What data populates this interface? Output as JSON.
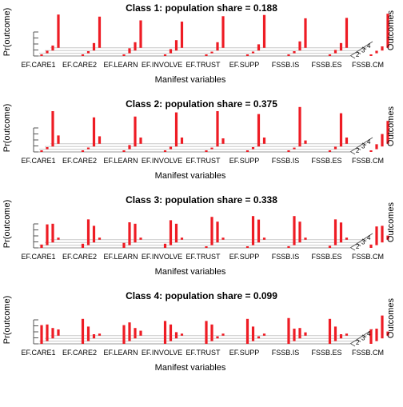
{
  "chart_data": [
    {
      "type": "bar3d",
      "title": "Class 1: population share = 0.188",
      "xlabel": "Manifest variables",
      "ylabel": "Pr(outcome)",
      "zlabel": "Outcomes",
      "categories": [
        "EF.CARE1",
        "EF.CARE2",
        "EF.LEARN",
        "EF.INVOLVE",
        "EF.TRUST",
        "EF.SUPP",
        "FSSB.IS",
        "FSSB.ES",
        "FSSB.CM"
      ],
      "outcome_ticks": [
        "2",
        "3",
        "4"
      ],
      "series": [
        {
          "values": [
            0.02,
            0.02,
            0.02,
            0.02,
            0.02,
            0.02,
            0.02,
            0.02,
            0.02
          ]
        },
        {
          "values": [
            0.06,
            0.05,
            0.12,
            0.1,
            0.02,
            0.04,
            0.05,
            0.08,
            0.06
          ]
        },
        {
          "values": [
            0.12,
            0.18,
            0.2,
            0.25,
            0.2,
            0.15,
            0.22,
            0.18,
            0.1
          ]
        },
        {
          "values": [
            0.8,
            0.75,
            0.66,
            0.63,
            0.76,
            0.79,
            0.71,
            0.72,
            0.82
          ]
        }
      ]
    },
    {
      "type": "bar3d",
      "title": "Class 2: population share = 0.375",
      "xlabel": "Manifest variables",
      "ylabel": "Pr(outcome)",
      "zlabel": "Outcomes",
      "categories": [
        "EF.CARE1",
        "EF.CARE2",
        "EF.LEARN",
        "EF.INVOLVE",
        "EF.TRUST",
        "EF.SUPP",
        "FSSB.IS",
        "FSSB.ES",
        "FSSB.CM"
      ],
      "outcome_ticks": [
        "2",
        "3",
        "4"
      ],
      "series": [
        {
          "values": [
            0.02,
            0.02,
            0.02,
            0.02,
            0.02,
            0.02,
            0.02,
            0.02,
            0.02
          ]
        },
        {
          "values": [
            0.05,
            0.04,
            0.1,
            0.06,
            0.03,
            0.05,
            0.02,
            0.06,
            0.12
          ]
        },
        {
          "values": [
            0.85,
            0.7,
            0.72,
            0.82,
            0.85,
            0.78,
            0.95,
            0.8,
            0.3
          ]
        },
        {
          "values": [
            0.2,
            0.18,
            0.15,
            0.15,
            0.13,
            0.15,
            0.08,
            0.15,
            0.55
          ]
        }
      ]
    },
    {
      "type": "bar3d",
      "title": "Class 3: population share = 0.338",
      "xlabel": "Manifest variables",
      "ylabel": "Pr(outcome)",
      "zlabel": "Outcomes",
      "categories": [
        "EF.CARE1",
        "EF.CARE2",
        "EF.LEARN",
        "EF.INVOLVE",
        "EF.TRUST",
        "EF.SUPP",
        "FSSB.IS",
        "FSSB.ES",
        "FSSB.CM"
      ],
      "outcome_ticks": [
        "2",
        "3",
        "4"
      ],
      "series": [
        {
          "values": [
            0.08,
            0.1,
            0.12,
            0.1,
            0.03,
            0.02,
            0.04,
            0.05,
            0.08
          ]
        },
        {
          "values": [
            0.5,
            0.62,
            0.55,
            0.6,
            0.68,
            0.7,
            0.7,
            0.62,
            0.45
          ]
        },
        {
          "values": [
            0.45,
            0.4,
            0.45,
            0.45,
            0.5,
            0.55,
            0.5,
            0.48,
            0.4
          ]
        },
        {
          "values": [
            0.05,
            0.05,
            0.05,
            0.05,
            0.05,
            0.05,
            0.05,
            0.05,
            0.1
          ]
        }
      ]
    },
    {
      "type": "bar3d",
      "title": "Class 4: population share = 0.099",
      "xlabel": "Manifest variables",
      "ylabel": "Pr(outcome)",
      "zlabel": "Outcomes",
      "categories": [
        "EF.CARE1",
        "EF.CARE2",
        "EF.LEARN",
        "EF.INVOLVE",
        "EF.TRUST",
        "EF.SUPP",
        "FSSB.IS",
        "FSSB.ES",
        "FSSB.CM"
      ],
      "outcome_ticks": [
        "2",
        "3",
        "4"
      ],
      "series": [
        {
          "values": [
            0.45,
            0.6,
            0.45,
            0.55,
            0.55,
            0.6,
            0.62,
            0.6,
            0.35
          ]
        },
        {
          "values": [
            0.4,
            0.35,
            0.45,
            0.4,
            0.4,
            0.35,
            0.3,
            0.35,
            0.3
          ]
        },
        {
          "values": [
            0.25,
            0.1,
            0.25,
            0.15,
            0.05,
            0.05,
            0.25,
            0.1,
            0.55
          ]
        },
        {
          "values": [
            0.15,
            0.05,
            0.12,
            0.05,
            0.05,
            0.05,
            0.08,
            0.05,
            0.1
          ]
        }
      ]
    }
  ]
}
